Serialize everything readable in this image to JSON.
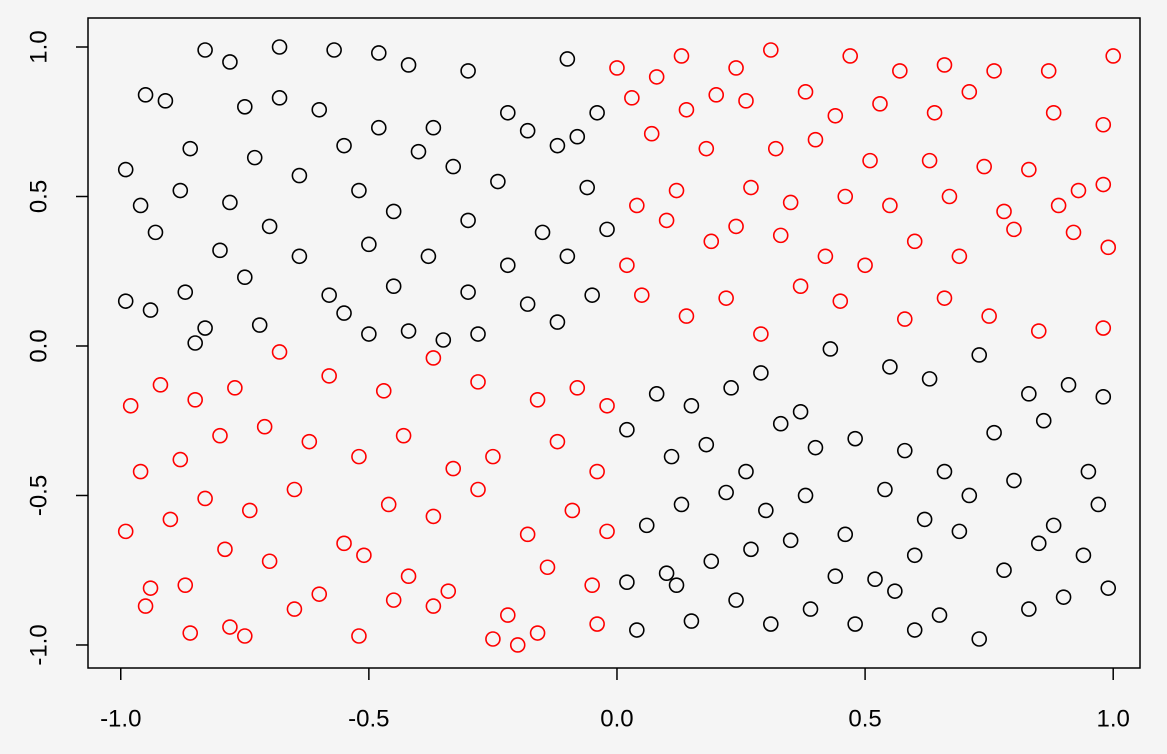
{
  "chart_data": {
    "type": "scatter",
    "xlim": [
      -1.066,
      1.054
    ],
    "ylim": [
      -1.077,
      1.097
    ],
    "xticks": [
      {
        "value": -1,
        "label": "-1.0"
      },
      {
        "value": -0.5,
        "label": "-0.5"
      },
      {
        "value": 0,
        "label": "0.0"
      },
      {
        "value": 0.5,
        "label": "0.5"
      },
      {
        "value": 1,
        "label": "1.0"
      }
    ],
    "yticks": [
      {
        "value": -1,
        "label": "-1.0"
      },
      {
        "value": -0.5,
        "label": "-0.5"
      },
      {
        "value": 0,
        "label": "0.0"
      },
      {
        "value": 0.5,
        "label": "0.5"
      },
      {
        "value": 1,
        "label": "1.0"
      }
    ],
    "grid": false,
    "series": [
      {
        "color": "#000000",
        "x": [
          -0.83,
          -0.68,
          -0.57,
          -0.48,
          -0.78,
          -0.42,
          -0.3,
          -0.1,
          -0.95,
          -0.68,
          -0.6,
          -0.22,
          -0.04,
          -0.91,
          -0.75,
          -0.48,
          -0.37,
          -0.18,
          -0.08,
          -0.86,
          -0.73,
          -0.55,
          -0.4,
          -0.12,
          -0.99,
          -0.88,
          -0.64,
          -0.52,
          -0.33,
          -0.24,
          -0.06,
          -0.96,
          -0.78,
          -0.7,
          -0.45,
          -0.3,
          -0.15,
          -0.02,
          -0.93,
          -0.8,
          -0.64,
          -0.5,
          -0.38,
          -0.22,
          -0.1,
          -0.99,
          -0.87,
          -0.75,
          -0.58,
          -0.45,
          -0.3,
          -0.18,
          -0.05,
          -0.94,
          -0.83,
          -0.72,
          -0.55,
          -0.42,
          -0.28,
          -0.12,
          -0.85,
          -0.5,
          -0.35,
          0.02,
          0.08,
          0.15,
          0.23,
          0.29,
          0.37,
          0.43,
          0.55,
          0.63,
          0.73,
          0.83,
          0.91,
          0.98,
          0.11,
          0.18,
          0.26,
          0.33,
          0.4,
          0.48,
          0.58,
          0.66,
          0.76,
          0.86,
          0.95,
          0.06,
          0.13,
          0.22,
          0.3,
          0.38,
          0.46,
          0.54,
          0.62,
          0.71,
          0.8,
          0.88,
          0.97,
          0.02,
          0.1,
          0.19,
          0.27,
          0.35,
          0.44,
          0.52,
          0.6,
          0.69,
          0.78,
          0.85,
          0.94,
          0.04,
          0.15,
          0.24,
          0.31,
          0.39,
          0.48,
          0.56,
          0.65,
          0.73,
          0.83,
          0.9,
          0.99,
          0.12,
          0.6
        ],
        "values": [
          0.99,
          1.0,
          0.99,
          0.98,
          0.95,
          0.94,
          0.92,
          0.96,
          0.84,
          0.83,
          0.79,
          0.78,
          0.78,
          0.82,
          0.8,
          0.73,
          0.73,
          0.72,
          0.7,
          0.66,
          0.63,
          0.67,
          0.65,
          0.67,
          0.59,
          0.52,
          0.57,
          0.52,
          0.6,
          0.55,
          0.53,
          0.47,
          0.48,
          0.4,
          0.45,
          0.42,
          0.38,
          0.39,
          0.38,
          0.32,
          0.3,
          0.34,
          0.3,
          0.27,
          0.3,
          0.15,
          0.18,
          0.23,
          0.17,
          0.2,
          0.18,
          0.14,
          0.17,
          0.12,
          0.06,
          0.07,
          0.11,
          0.05,
          0.04,
          0.08,
          0.01,
          0.04,
          0.02,
          -0.28,
          -0.16,
          -0.2,
          -0.14,
          -0.09,
          -0.22,
          -0.01,
          -0.07,
          -0.11,
          -0.03,
          -0.16,
          -0.13,
          -0.17,
          -0.37,
          -0.33,
          -0.42,
          -0.26,
          -0.34,
          -0.31,
          -0.35,
          -0.42,
          -0.29,
          -0.25,
          -0.42,
          -0.6,
          -0.53,
          -0.49,
          -0.55,
          -0.5,
          -0.63,
          -0.48,
          -0.58,
          -0.5,
          -0.45,
          -0.6,
          -0.53,
          -0.79,
          -0.76,
          -0.72,
          -0.68,
          -0.65,
          -0.77,
          -0.78,
          -0.7,
          -0.62,
          -0.75,
          -0.66,
          -0.7,
          -0.95,
          -0.92,
          -0.85,
          -0.93,
          -0.88,
          -0.93,
          -0.82,
          -0.9,
          -0.98,
          -0.88,
          -0.84,
          -0.81,
          -0.8,
          -0.95
        ]
      },
      {
        "color": "#ff0000",
        "x": [
          0.0,
          0.08,
          0.13,
          0.24,
          0.31,
          0.38,
          0.47,
          0.57,
          0.66,
          0.76,
          0.87,
          1.0,
          0.03,
          0.14,
          0.2,
          0.26,
          0.44,
          0.53,
          0.64,
          0.71,
          0.88,
          0.98,
          0.07,
          0.18,
          0.32,
          0.4,
          0.51,
          0.63,
          0.74,
          0.83,
          0.93,
          0.04,
          0.12,
          0.27,
          0.35,
          0.46,
          0.55,
          0.67,
          0.78,
          0.89,
          0.98,
          0.02,
          0.1,
          0.19,
          0.24,
          0.33,
          0.42,
          0.5,
          0.6,
          0.69,
          0.8,
          0.92,
          0.99,
          0.05,
          0.14,
          0.22,
          0.29,
          0.37,
          0.45,
          0.58,
          0.66,
          0.75,
          0.85,
          0.98,
          -0.98,
          -0.92,
          -0.85,
          -0.77,
          -0.68,
          -0.58,
          -0.47,
          -0.37,
          -0.28,
          -0.16,
          -0.08,
          -0.02,
          -0.96,
          -0.88,
          -0.8,
          -0.71,
          -0.62,
          -0.52,
          -0.43,
          -0.33,
          -0.25,
          -0.12,
          -0.04,
          -0.99,
          -0.9,
          -0.83,
          -0.74,
          -0.65,
          -0.55,
          -0.46,
          -0.37,
          -0.28,
          -0.18,
          -0.09,
          -0.02,
          -0.94,
          -0.87,
          -0.79,
          -0.7,
          -0.6,
          -0.51,
          -0.42,
          -0.34,
          -0.22,
          -0.14,
          -0.05,
          -0.95,
          -0.86,
          -0.75,
          -0.65,
          -0.52,
          -0.45,
          -0.37,
          -0.25,
          -0.16,
          -0.04,
          -0.78,
          -0.2
        ],
        "values": [
          0.93,
          0.9,
          0.97,
          0.93,
          0.99,
          0.85,
          0.97,
          0.92,
          0.94,
          0.92,
          0.92,
          0.97,
          0.83,
          0.79,
          0.84,
          0.82,
          0.77,
          0.81,
          0.78,
          0.85,
          0.78,
          0.74,
          0.71,
          0.66,
          0.66,
          0.69,
          0.62,
          0.62,
          0.6,
          0.59,
          0.52,
          0.47,
          0.52,
          0.53,
          0.48,
          0.5,
          0.47,
          0.5,
          0.45,
          0.47,
          0.54,
          0.27,
          0.42,
          0.35,
          0.4,
          0.37,
          0.3,
          0.27,
          0.35,
          0.3,
          0.39,
          0.38,
          0.33,
          0.17,
          0.1,
          0.16,
          0.04,
          0.2,
          0.15,
          0.09,
          0.16,
          0.1,
          0.05,
          0.06,
          -0.2,
          -0.13,
          -0.18,
          -0.14,
          -0.02,
          -0.1,
          -0.15,
          -0.04,
          -0.12,
          -0.18,
          -0.14,
          -0.2,
          -0.42,
          -0.38,
          -0.3,
          -0.27,
          -0.32,
          -0.37,
          -0.3,
          -0.41,
          -0.37,
          -0.32,
          -0.42,
          -0.62,
          -0.58,
          -0.51,
          -0.55,
          -0.48,
          -0.66,
          -0.53,
          -0.57,
          -0.48,
          -0.63,
          -0.55,
          -0.62,
          -0.81,
          -0.8,
          -0.68,
          -0.72,
          -0.83,
          -0.7,
          -0.77,
          -0.82,
          -0.9,
          -0.74,
          -0.8,
          -0.87,
          -0.96,
          -0.97,
          -0.88,
          -0.97,
          -0.85,
          -0.87,
          -0.98,
          -0.96,
          -0.93,
          -0.94,
          -1.0
        ]
      }
    ]
  }
}
